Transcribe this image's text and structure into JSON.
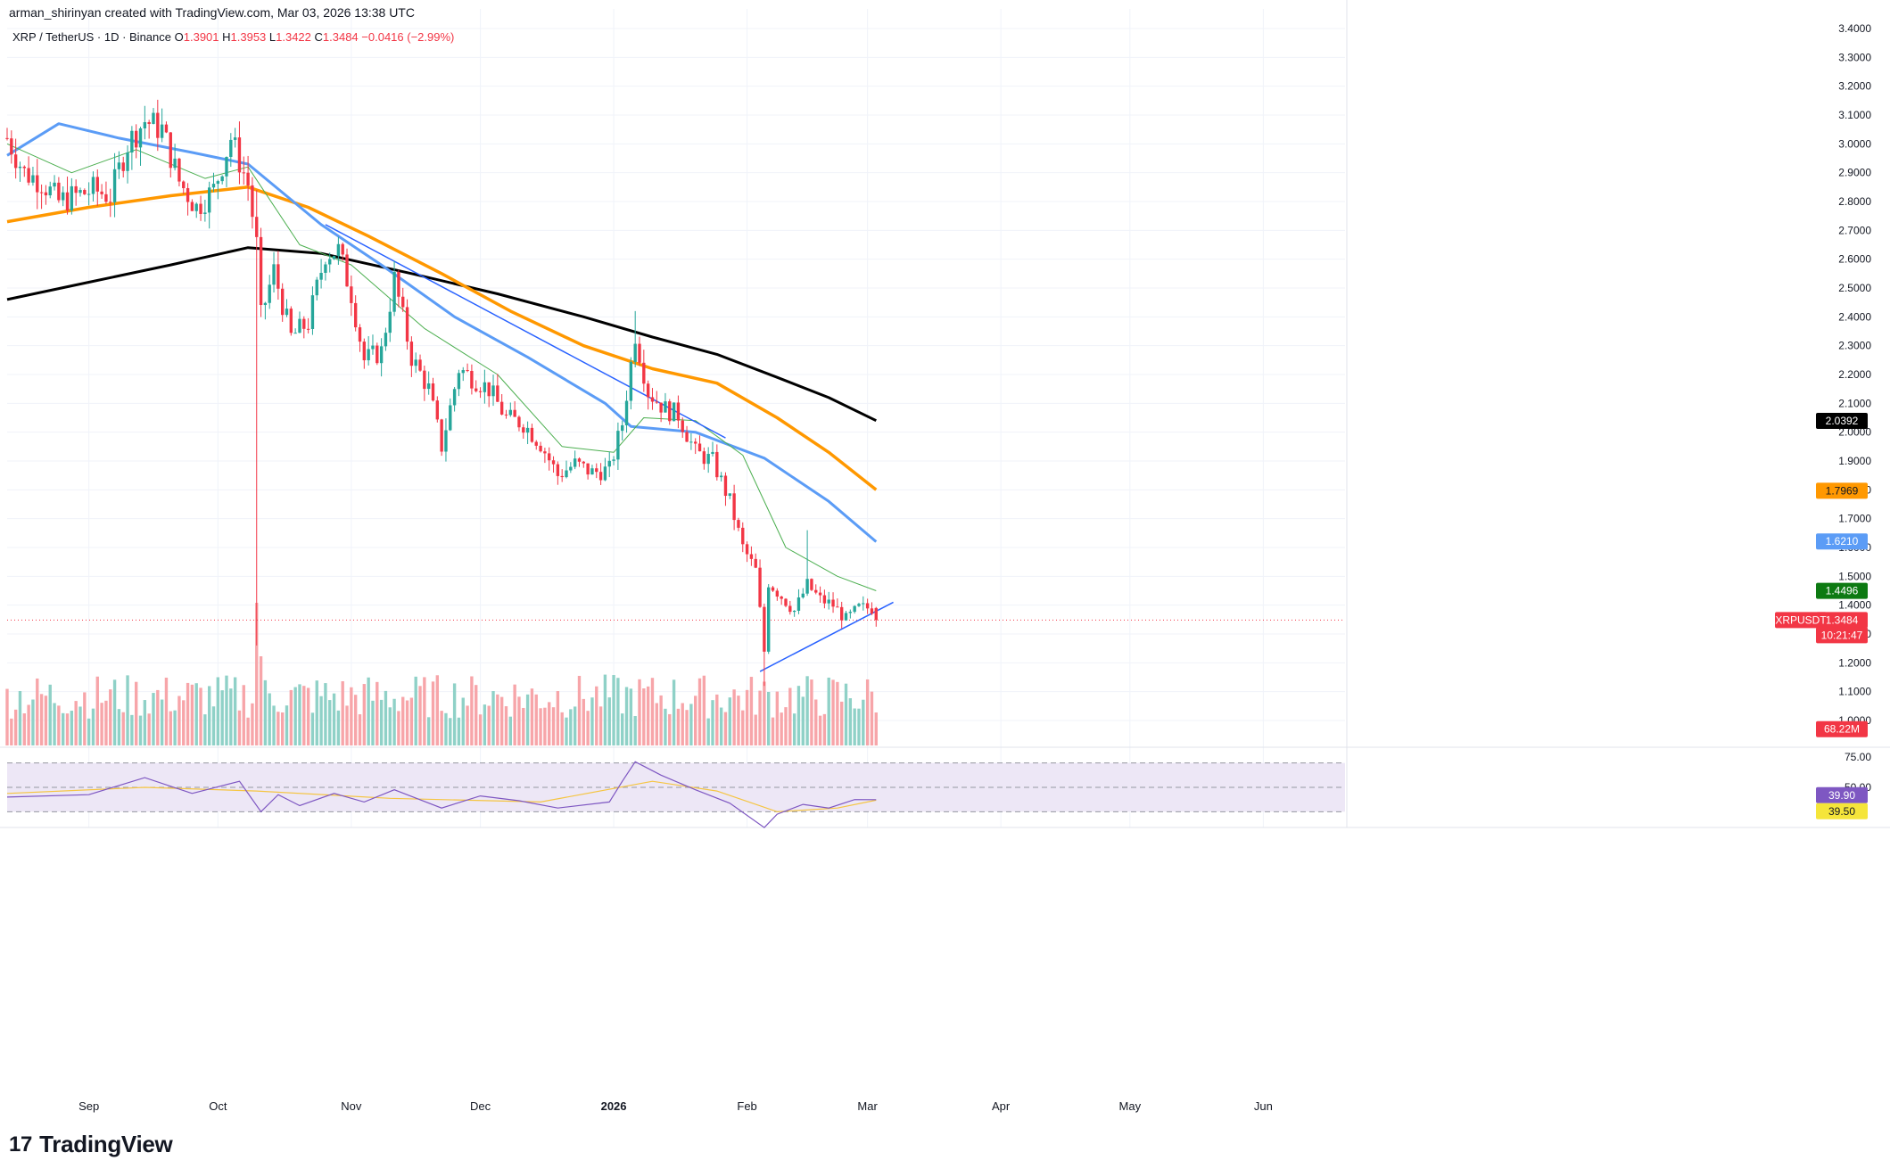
{
  "header": {
    "created_line": "arman_shirinyan created with TradingView.com, Mar 03, 2026 13:38 UTC",
    "symbol": "XRP / TetherUS · 1D · Binance",
    "ohlc": [
      {
        "k": "O",
        "v": "1.3901"
      },
      {
        "k": "H",
        "v": "1.3953"
      },
      {
        "k": "L",
        "v": "1.3422"
      },
      {
        "k": "C",
        "v": "1.3484"
      }
    ],
    "change": "−0.0416 (−2.99%)"
  },
  "logo": {
    "text": "TradingView",
    "icon": "tradingview-logo-icon"
  },
  "colors": {
    "up": "#26a69a",
    "down": "#f23645",
    "vol_up": "#8fd1c7",
    "vol_down": "#f7a5a9",
    "sma200": "#000000",
    "ema100": "#ff9800",
    "ema50": "#5b9cf6",
    "ema20": "#4caf50",
    "trendline": "#2962ff",
    "rsi": "#7e57c2",
    "rsi_ma": "#f5c542",
    "rsi_band": "#ede7f6"
  },
  "chart_data": {
    "type": "candlestick",
    "y_scale": "linear",
    "ylim": [
      0.96,
      3.44
    ],
    "y_ticks": [
      "3.4000",
      "3.3000",
      "3.2000",
      "3.1000",
      "3.0000",
      "2.9000",
      "2.8000",
      "2.7000",
      "2.6000",
      "2.5000",
      "2.4000",
      "2.3000",
      "2.2000",
      "2.1000",
      "2.0000",
      "1.9000",
      "1.8000",
      "1.7000",
      "1.6000",
      "1.5000",
      "1.4000",
      "1.3000",
      "1.2000",
      "1.1000",
      "1.0000"
    ],
    "x_ticks": [
      {
        "label": "Sep",
        "date": "2025-09-01"
      },
      {
        "label": "Oct",
        "date": "2025-10-01"
      },
      {
        "label": "Nov",
        "date": "2025-11-01"
      },
      {
        "label": "Dec",
        "date": "2025-12-01"
      },
      {
        "label": "2026",
        "date": "2026-01-01"
      },
      {
        "label": "Feb",
        "date": "2026-02-01"
      },
      {
        "label": "Mar",
        "date": "2026-03-01"
      },
      {
        "label": "Apr",
        "date": "2026-04-01"
      },
      {
        "label": "May",
        "date": "2026-05-01"
      },
      {
        "label": "Jun",
        "date": "2026-06-01"
      }
    ],
    "closes": [
      {
        "date": "2025-08-13",
        "c": 3.02
      },
      {
        "date": "2025-08-17",
        "c": 2.9
      },
      {
        "date": "2025-08-21",
        "c": 2.87
      },
      {
        "date": "2025-08-25",
        "c": 2.8
      },
      {
        "date": "2025-08-29",
        "c": 2.82
      },
      {
        "date": "2025-09-02",
        "c": 2.84
      },
      {
        "date": "2025-09-06",
        "c": 2.82
      },
      {
        "date": "2025-09-10",
        "c": 3.0
      },
      {
        "date": "2025-09-14",
        "c": 3.08
      },
      {
        "date": "2025-09-18",
        "c": 3.05
      },
      {
        "date": "2025-09-22",
        "c": 2.87
      },
      {
        "date": "2025-09-26",
        "c": 2.78
      },
      {
        "date": "2025-09-30",
        "c": 2.84
      },
      {
        "date": "2025-10-04",
        "c": 3.02
      },
      {
        "date": "2025-10-08",
        "c": 2.86
      },
      {
        "date": "2025-10-10",
        "c": 2.65
      },
      {
        "date": "2025-10-11",
        "c": 2.4
      },
      {
        "date": "2025-10-14",
        "c": 2.56
      },
      {
        "date": "2025-10-18",
        "c": 2.33
      },
      {
        "date": "2025-10-22",
        "c": 2.38
      },
      {
        "date": "2025-10-26",
        "c": 2.62
      },
      {
        "date": "2025-10-29",
        "c": 2.63
      },
      {
        "date": "2025-11-01",
        "c": 2.48
      },
      {
        "date": "2025-11-04",
        "c": 2.25
      },
      {
        "date": "2025-11-08",
        "c": 2.28
      },
      {
        "date": "2025-11-11",
        "c": 2.53
      },
      {
        "date": "2025-11-15",
        "c": 2.26
      },
      {
        "date": "2025-11-19",
        "c": 2.15
      },
      {
        "date": "2025-11-22",
        "c": 1.95
      },
      {
        "date": "2025-11-26",
        "c": 2.22
      },
      {
        "date": "2025-11-30",
        "c": 2.18
      },
      {
        "date": "2025-12-03",
        "c": 2.15
      },
      {
        "date": "2025-12-07",
        "c": 2.05
      },
      {
        "date": "2025-12-11",
        "c": 2.03
      },
      {
        "date": "2025-12-15",
        "c": 1.96
      },
      {
        "date": "2025-12-19",
        "c": 1.85
      },
      {
        "date": "2025-12-23",
        "c": 1.89
      },
      {
        "date": "2025-12-27",
        "c": 1.86
      },
      {
        "date": "2025-12-31",
        "c": 1.87
      },
      {
        "date": "2026-01-03",
        "c": 2.03
      },
      {
        "date": "2026-01-06",
        "c": 2.34
      },
      {
        "date": "2026-01-09",
        "c": 2.14
      },
      {
        "date": "2026-01-13",
        "c": 2.08
      },
      {
        "date": "2026-01-16",
        "c": 2.06
      },
      {
        "date": "2026-01-20",
        "c": 1.93
      },
      {
        "date": "2026-01-24",
        "c": 1.9
      },
      {
        "date": "2026-01-28",
        "c": 1.76
      },
      {
        "date": "2026-01-31",
        "c": 1.6
      },
      {
        "date": "2026-02-03",
        "c": 1.52
      },
      {
        "date": "2026-02-05",
        "c": 1.24
      },
      {
        "date": "2026-02-06",
        "c": 1.48
      },
      {
        "date": "2026-02-09",
        "c": 1.43
      },
      {
        "date": "2026-02-12",
        "c": 1.38
      },
      {
        "date": "2026-02-15",
        "c": 1.47
      },
      {
        "date": "2026-02-18",
        "c": 1.42
      },
      {
        "date": "2026-02-21",
        "c": 1.4
      },
      {
        "date": "2026-02-24",
        "c": 1.35
      },
      {
        "date": "2026-02-27",
        "c": 1.39
      },
      {
        "date": "2026-03-02",
        "c": 1.3901
      },
      {
        "date": "2026-03-03",
        "c": 1.3484
      }
    ],
    "series": [
      {
        "key": "sma200",
        "points": [
          [
            "2025-08-13",
            2.46
          ],
          [
            "2025-09-01",
            2.52
          ],
          [
            "2025-09-20",
            2.58
          ],
          [
            "2025-10-08",
            2.64
          ],
          [
            "2025-10-25",
            2.62
          ],
          [
            "2025-11-15",
            2.55
          ],
          [
            "2025-12-05",
            2.48
          ],
          [
            "2025-12-25",
            2.4
          ],
          [
            "2026-01-10",
            2.33
          ],
          [
            "2026-01-25",
            2.27
          ],
          [
            "2026-02-08",
            2.19
          ],
          [
            "2026-02-20",
            2.12
          ],
          [
            "2026-03-03",
            2.04
          ]
        ]
      },
      {
        "key": "ema100",
        "points": [
          [
            "2025-08-13",
            2.73
          ],
          [
            "2025-09-01",
            2.78
          ],
          [
            "2025-09-20",
            2.82
          ],
          [
            "2025-10-08",
            2.85
          ],
          [
            "2025-10-22",
            2.78
          ],
          [
            "2025-11-05",
            2.68
          ],
          [
            "2025-11-22",
            2.55
          ],
          [
            "2025-12-08",
            2.42
          ],
          [
            "2025-12-25",
            2.3
          ],
          [
            "2026-01-10",
            2.22
          ],
          [
            "2026-01-25",
            2.17
          ],
          [
            "2026-02-08",
            2.05
          ],
          [
            "2026-02-20",
            1.93
          ],
          [
            "2026-03-03",
            1.8
          ]
        ]
      },
      {
        "key": "ema50",
        "points": [
          [
            "2025-08-13",
            2.96
          ],
          [
            "2025-08-25",
            3.07
          ],
          [
            "2025-09-08",
            3.02
          ],
          [
            "2025-09-25",
            2.97
          ],
          [
            "2025-10-08",
            2.93
          ],
          [
            "2025-10-25",
            2.72
          ],
          [
            "2025-11-08",
            2.58
          ],
          [
            "2025-11-25",
            2.4
          ],
          [
            "2025-12-12",
            2.26
          ],
          [
            "2025-12-30",
            2.1
          ],
          [
            "2026-01-05",
            2.02
          ],
          [
            "2026-01-20",
            2.0
          ],
          [
            "2026-02-05",
            1.91
          ],
          [
            "2026-02-20",
            1.76
          ],
          [
            "2026-03-03",
            1.62
          ]
        ]
      },
      {
        "key": "ema20",
        "points": [
          [
            "2025-08-13",
            3.0
          ],
          [
            "2025-08-28",
            2.9
          ],
          [
            "2025-09-12",
            2.98
          ],
          [
            "2025-09-28",
            2.88
          ],
          [
            "2025-10-08",
            2.92
          ],
          [
            "2025-10-20",
            2.65
          ],
          [
            "2025-11-01",
            2.58
          ],
          [
            "2025-11-18",
            2.36
          ],
          [
            "2025-12-05",
            2.2
          ],
          [
            "2025-12-20",
            1.95
          ],
          [
            "2026-01-01",
            1.93
          ],
          [
            "2026-01-08",
            2.05
          ],
          [
            "2026-01-20",
            2.04
          ],
          [
            "2026-01-31",
            1.92
          ],
          [
            "2026-02-10",
            1.6
          ],
          [
            "2026-02-22",
            1.5
          ],
          [
            "2026-03-03",
            1.45
          ]
        ]
      }
    ],
    "trendlines": [
      {
        "name": "descending",
        "from": [
          "2025-10-26",
          2.72
        ],
        "to": [
          "2026-01-27",
          1.98
        ]
      },
      {
        "name": "ascending",
        "from": [
          "2026-02-04",
          1.17
        ],
        "to": [
          "2026-03-07",
          1.41
        ]
      }
    ],
    "price_labels": [
      {
        "key": "sma200",
        "text": "2.0392",
        "value": 2.0392,
        "color": "#000000",
        "fg": "#ffffff"
      },
      {
        "key": "ema100",
        "text": "1.7969",
        "value": 1.7969,
        "color": "#ff9800",
        "fg": "#131722"
      },
      {
        "key": "ema50",
        "text": "1.6210",
        "value": 1.621,
        "color": "#5b9cf6",
        "fg": "#ffffff"
      },
      {
        "key": "ema20",
        "text": "1.4496",
        "value": 1.4496,
        "color": "#0d7a12",
        "fg": "#ffffff"
      }
    ],
    "last_price": {
      "symbol": "XRPUSDT",
      "price": "1.3484",
      "value": 1.3484,
      "countdown": "10:21:47",
      "color": "#f23645"
    },
    "volume": {
      "last": "68.22M",
      "color": "#f23645"
    },
    "rsi": {
      "ylim": [
        20,
        80
      ],
      "ticks": [
        "75.00",
        "50.00"
      ],
      "upper_band": 70,
      "lower_band": 30,
      "mid": 50,
      "value": "39.90",
      "ma_value": "39.50",
      "value_color": "#7e57c2",
      "ma_color": "#f5e53a",
      "points": [
        [
          "2025-08-13",
          42
        ],
        [
          "2025-09-01",
          44
        ],
        [
          "2025-09-14",
          58
        ],
        [
          "2025-09-25",
          45
        ],
        [
          "2025-10-06",
          55
        ],
        [
          "2025-10-11",
          30
        ],
        [
          "2025-10-15",
          44
        ],
        [
          "2025-10-20",
          35
        ],
        [
          "2025-10-28",
          45
        ],
        [
          "2025-11-04",
          38
        ],
        [
          "2025-11-11",
          48
        ],
        [
          "2025-11-22",
          33
        ],
        [
          "2025-12-01",
          43
        ],
        [
          "2025-12-10",
          39
        ],
        [
          "2025-12-19",
          33
        ],
        [
          "2025-12-31",
          38
        ],
        [
          "2026-01-03",
          55
        ],
        [
          "2026-01-06",
          71
        ],
        [
          "2026-01-12",
          60
        ],
        [
          "2026-01-20",
          48
        ],
        [
          "2026-01-28",
          37
        ],
        [
          "2026-02-05",
          17
        ],
        [
          "2026-02-08",
          28
        ],
        [
          "2026-02-14",
          36
        ],
        [
          "2026-02-20",
          33
        ],
        [
          "2026-02-26",
          40
        ],
        [
          "2026-03-03",
          39.9
        ]
      ],
      "ma_points": [
        [
          "2025-08-13",
          45
        ],
        [
          "2025-09-14",
          50
        ],
        [
          "2025-10-10",
          47
        ],
        [
          "2025-11-10",
          41
        ],
        [
          "2025-12-15",
          38
        ],
        [
          "2026-01-10",
          55
        ],
        [
          "2026-01-25",
          47
        ],
        [
          "2026-02-08",
          30
        ],
        [
          "2026-02-22",
          33
        ],
        [
          "2026-03-03",
          39.5
        ]
      ]
    }
  }
}
